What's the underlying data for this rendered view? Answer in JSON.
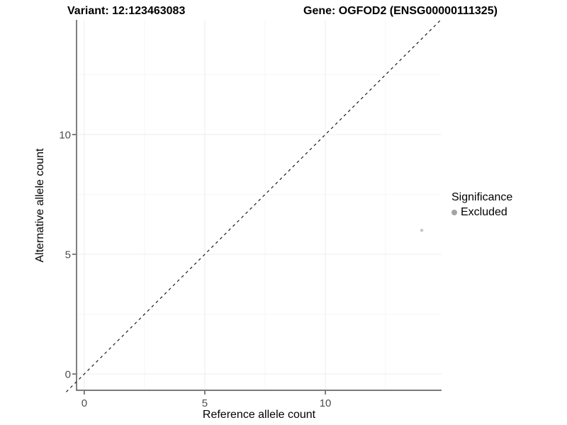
{
  "chart_data": {
    "type": "scatter",
    "variant_title": "Variant: 12:123463083",
    "gene_title": "Gene: OGFOD2 (ENSG00000111325)",
    "xlabel": "Reference allele count",
    "ylabel": "Alternative allele count",
    "x_ticks": [
      0,
      5,
      10
    ],
    "y_ticks": [
      0,
      5,
      10
    ],
    "x_minor_gridlines": [
      2.5,
      7.5,
      12.5
    ],
    "y_minor_gridlines": [
      2.5,
      7.5,
      12.5
    ],
    "xlim": [
      -0.32,
      14.82
    ],
    "ylim": [
      -0.68,
      14.79
    ],
    "grid": true,
    "legend_position": "right",
    "legend": {
      "title": "Significance",
      "entries": [
        {
          "label": "Excluded",
          "color": "#a4a4a4"
        }
      ]
    },
    "points": [
      {
        "x": 14,
        "y": 6,
        "series": "Excluded",
        "color": "#c5c5c5",
        "radius": 2.2
      }
    ],
    "identity_line": {
      "slope": 1,
      "intercept": 0,
      "linestyle": "dashed",
      "color": "#1a1a1a"
    },
    "style": {
      "background": "#ffffff",
      "axis_color": "#2b2b2b",
      "tick_color": "#2b2b2b",
      "tick_label_color": "#4d4d4d",
      "major_grid_color": "#ececec",
      "minor_grid_color": "#f6f6f6"
    }
  }
}
